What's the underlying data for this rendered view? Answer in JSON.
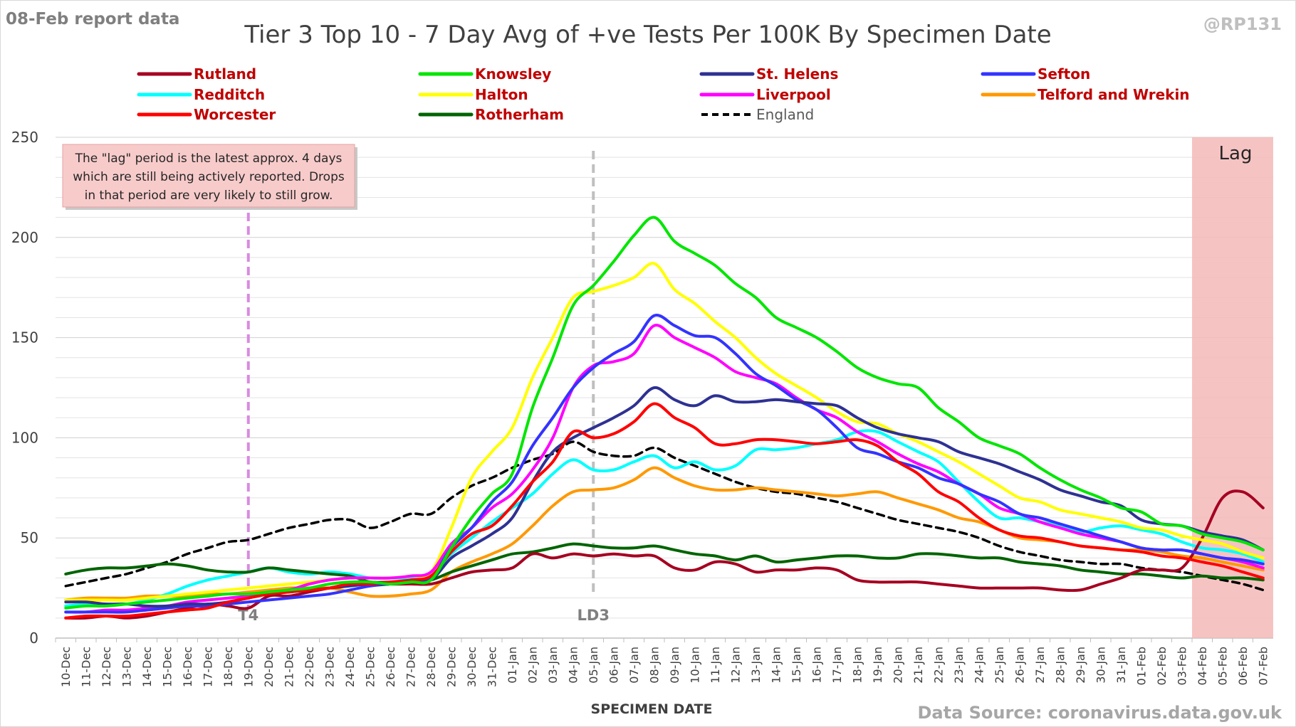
{
  "header": {
    "report_label": "08-Feb report data",
    "handle": "@RP131",
    "source": "Data Source: coronavirus.data.gov.uk"
  },
  "colors": {
    "legend_text": "#c00000",
    "england_text": "#595959",
    "lag_fill": "#f4b8b8",
    "annotation_fill": "#f8cbcb",
    "t4_line": "#d98ae0",
    "ld3_line": "#bfbfbf",
    "grid": "#e3e3e3"
  },
  "chart_data": {
    "type": "line",
    "title": "Tier 3 Top 10 - 7 Day Avg of +ve Tests Per 100K By Specimen Date",
    "xlabel": "SPECIMEN DATE",
    "ylabel": "",
    "ylim": [
      0,
      250
    ],
    "yticks": [
      0,
      50,
      100,
      150,
      200,
      250
    ],
    "grid": true,
    "legend_position": "top",
    "categories": [
      "10-Dec",
      "11-Dec",
      "12-Dec",
      "13-Dec",
      "14-Dec",
      "15-Dec",
      "16-Dec",
      "17-Dec",
      "18-Dec",
      "19-Dec",
      "20-Dec",
      "21-Dec",
      "22-Dec",
      "23-Dec",
      "24-Dec",
      "25-Dec",
      "26-Dec",
      "27-Dec",
      "28-Dec",
      "29-Dec",
      "30-Dec",
      "31-Dec",
      "01-Jan",
      "02-Jan",
      "03-Jan",
      "04-Jan",
      "05-Jan",
      "06-Jan",
      "07-Jan",
      "08-Jan",
      "09-Jan",
      "10-Jan",
      "11-Jan",
      "12-Jan",
      "13-Jan",
      "14-Jan",
      "15-Jan",
      "16-Jan",
      "17-Jan",
      "18-Jan",
      "19-Jan",
      "20-Jan",
      "21-Jan",
      "22-Jan",
      "23-Jan",
      "24-Jan",
      "25-Jan",
      "26-Jan",
      "27-Jan",
      "28-Jan",
      "29-Jan",
      "30-Jan",
      "31-Jan",
      "01-Feb",
      "02-Feb",
      "03-Feb",
      "04-Feb",
      "05-Feb",
      "06-Feb",
      "07-Feb"
    ],
    "series": [
      {
        "name": "Rutland",
        "color": "#a50021",
        "dashed": false,
        "values": [
          10,
          10,
          11,
          10,
          11,
          13,
          15,
          17,
          16,
          15,
          21,
          21,
          23,
          25,
          27,
          28,
          27,
          27,
          27,
          30,
          33,
          34,
          35,
          42,
          40,
          42,
          41,
          42,
          41,
          41,
          35,
          34,
          38,
          37,
          33,
          34,
          34,
          35,
          34,
          29,
          28,
          28,
          28,
          27,
          26,
          25,
          25,
          25,
          25,
          24,
          24,
          27,
          30,
          34,
          34,
          35,
          50,
          70,
          73,
          65
        ]
      },
      {
        "name": "Knowsley",
        "color": "#00e600",
        "dashed": false,
        "values": [
          15,
          16,
          16,
          17,
          18,
          19,
          20,
          21,
          22,
          22,
          23,
          24,
          25,
          27,
          28,
          28,
          27,
          28,
          29,
          45,
          60,
          72,
          82,
          115,
          140,
          166,
          176,
          188,
          201,
          210,
          198,
          192,
          186,
          177,
          170,
          160,
          155,
          150,
          143,
          135,
          130,
          127,
          125,
          115,
          108,
          100,
          96,
          92,
          85,
          79,
          74,
          70,
          65,
          63,
          57,
          56,
          52,
          50,
          48,
          44
        ]
      },
      {
        "name": "St. Helens",
        "color": "#2e3192",
        "dashed": false,
        "values": [
          18,
          18,
          17,
          17,
          16,
          16,
          17,
          17,
          18,
          20,
          22,
          23,
          24,
          25,
          26,
          27,
          27,
          28,
          29,
          40,
          46,
          52,
          60,
          78,
          93,
          100,
          105,
          110,
          116,
          125,
          119,
          116,
          121,
          118,
          118,
          119,
          118,
          117,
          116,
          110,
          105,
          102,
          100,
          98,
          93,
          90,
          87,
          83,
          79,
          74,
          71,
          68,
          66,
          59,
          57,
          56,
          53,
          51,
          49,
          44
        ]
      },
      {
        "name": "Sefton",
        "color": "#3333ff",
        "dashed": false,
        "values": [
          13,
          13,
          13,
          13,
          14,
          15,
          16,
          16,
          17,
          18,
          19,
          20,
          21,
          22,
          24,
          26,
          27,
          28,
          30,
          45,
          55,
          68,
          78,
          96,
          110,
          125,
          135,
          142,
          148,
          161,
          156,
          151,
          150,
          142,
          132,
          126,
          119,
          114,
          105,
          95,
          92,
          88,
          85,
          80,
          77,
          72,
          68,
          62,
          60,
          57,
          54,
          51,
          48,
          45,
          44,
          44,
          42,
          40,
          39,
          37
        ]
      },
      {
        "name": "Redditch",
        "color": "#00ffff",
        "dashed": false,
        "values": [
          16,
          17,
          17,
          17,
          19,
          22,
          26,
          29,
          31,
          33,
          35,
          33,
          32,
          33,
          32,
          30,
          30,
          30,
          31,
          42,
          50,
          58,
          65,
          72,
          82,
          89,
          84,
          84,
          88,
          91,
          85,
          88,
          84,
          86,
          94,
          94,
          95,
          97,
          99,
          103,
          103,
          98,
          93,
          88,
          78,
          68,
          60,
          60,
          58,
          56,
          53,
          55,
          56,
          54,
          52,
          48,
          45,
          44,
          42,
          38
        ]
      },
      {
        "name": "Halton",
        "color": "#ffff00",
        "dashed": false,
        "values": [
          19,
          19,
          19,
          19,
          20,
          21,
          22,
          23,
          24,
          25,
          26,
          27,
          28,
          29,
          30,
          30,
          30,
          31,
          33,
          55,
          80,
          93,
          105,
          130,
          150,
          170,
          173,
          176,
          180,
          187,
          174,
          167,
          158,
          150,
          140,
          132,
          126,
          120,
          113,
          108,
          107,
          102,
          98,
          93,
          88,
          82,
          76,
          70,
          68,
          64,
          62,
          60,
          58,
          55,
          54,
          51,
          49,
          47,
          43,
          40
        ]
      },
      {
        "name": "Liverpool",
        "color": "#ff00ff",
        "dashed": false,
        "values": [
          13,
          13,
          14,
          14,
          15,
          16,
          18,
          19,
          20,
          21,
          23,
          24,
          27,
          29,
          30,
          30,
          30,
          31,
          33,
          47,
          55,
          65,
          72,
          84,
          100,
          125,
          136,
          138,
          142,
          156,
          150,
          145,
          140,
          133,
          130,
          127,
          120,
          114,
          110,
          103,
          98,
          92,
          87,
          83,
          77,
          72,
          65,
          62,
          58,
          55,
          52,
          50,
          48,
          45,
          44,
          44,
          42,
          40,
          38,
          35
        ]
      },
      {
        "name": "Telford and Wrekin",
        "color": "#ff9900",
        "dashed": false,
        "values": [
          19,
          20,
          20,
          20,
          21,
          21,
          21,
          22,
          22,
          23,
          24,
          25,
          25,
          25,
          23,
          21,
          21,
          22,
          24,
          33,
          38,
          42,
          47,
          56,
          66,
          73,
          74,
          75,
          79,
          85,
          80,
          76,
          74,
          74,
          75,
          74,
          73,
          72,
          71,
          72,
          73,
          70,
          67,
          64,
          60,
          58,
          54,
          50,
          49,
          48,
          46,
          45,
          44,
          44,
          43,
          41,
          40,
          38,
          36,
          34
        ]
      },
      {
        "name": "Worcester",
        "color": "#ff0000",
        "dashed": false,
        "values": [
          10,
          11,
          11,
          11,
          12,
          13,
          14,
          15,
          18,
          20,
          22,
          23,
          24,
          25,
          27,
          27,
          28,
          29,
          31,
          43,
          52,
          56,
          66,
          78,
          88,
          103,
          100,
          102,
          108,
          117,
          110,
          105,
          97,
          97,
          99,
          99,
          98,
          97,
          98,
          99,
          96,
          88,
          82,
          73,
          68,
          60,
          54,
          51,
          50,
          48,
          46,
          45,
          44,
          43,
          41,
          40,
          38,
          36,
          33,
          30
        ]
      },
      {
        "name": "Rotherham",
        "color": "#006400",
        "dashed": false,
        "values": [
          32,
          34,
          35,
          35,
          36,
          37,
          36,
          34,
          33,
          33,
          35,
          34,
          33,
          32,
          31,
          28,
          28,
          28,
          29,
          33,
          36,
          39,
          42,
          43,
          45,
          47,
          46,
          45,
          45,
          46,
          44,
          42,
          41,
          39,
          41,
          38,
          39,
          40,
          41,
          41,
          40,
          40,
          42,
          42,
          41,
          40,
          40,
          38,
          37,
          36,
          34,
          33,
          32,
          32,
          31,
          30,
          31,
          30,
          30,
          29
        ]
      },
      {
        "name": "England",
        "color": "#000000",
        "dashed": true,
        "values": [
          26,
          28,
          30,
          32,
          35,
          38,
          42,
          45,
          48,
          49,
          52,
          55,
          57,
          59,
          59,
          55,
          58,
          62,
          62,
          70,
          76,
          80,
          85,
          89,
          92,
          98,
          93,
          91,
          91,
          95,
          90,
          86,
          82,
          78,
          75,
          73,
          72,
          70,
          68,
          65,
          62,
          59,
          57,
          55,
          53,
          50,
          46,
          43,
          41,
          39,
          38,
          37,
          37,
          35,
          34,
          33,
          31,
          29,
          27,
          24
        ]
      }
    ],
    "vlines": [
      {
        "label": "T4",
        "category": "19-Dec"
      },
      {
        "label": "LD3",
        "category": "05-Jan"
      }
    ],
    "lag_region": {
      "label": "Lag",
      "from": "04-Feb",
      "to": "07-Feb"
    },
    "annotation": {
      "lines": [
        "The \"lag\" period is the latest approx. 4 days",
        "which are still being actively reported.  Drops",
        "in that period are very likely to still grow."
      ]
    }
  }
}
